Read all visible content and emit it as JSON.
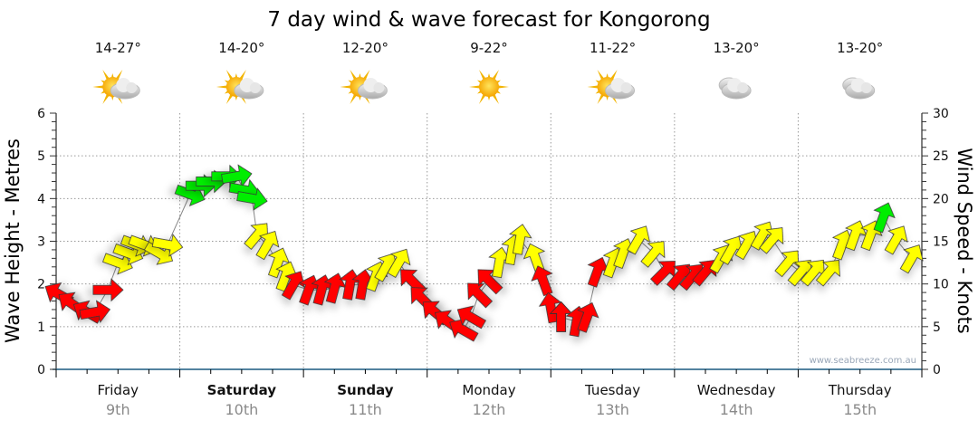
{
  "chart_data": {
    "type": "scatter",
    "title": "7 day wind & wave forecast for Kongorong",
    "ylabel_left": "Wave Height - Metres",
    "ylabel_right": "Wind Speed - Knots",
    "ylim_left": [
      0,
      6
    ],
    "ylim_right": [
      0,
      30
    ],
    "left_ticks": [
      "0",
      "1",
      "2",
      "3",
      "4",
      "5",
      "6"
    ],
    "right_ticks": [
      "0",
      "5",
      "10",
      "15",
      "20",
      "25",
      "30"
    ],
    "x_hours_range": [
      0,
      168
    ],
    "grid": true,
    "watermark": "www.seabreeze.com.au",
    "days": [
      {
        "name": "Friday",
        "date": "9th",
        "temp": "14-27°",
        "icon": "sun-cloud-icon",
        "bold": false
      },
      {
        "name": "Saturday",
        "date": "10th",
        "temp": "14-20°",
        "icon": "sun-cloud-icon",
        "bold": true
      },
      {
        "name": "Sunday",
        "date": "11th",
        "temp": "12-20°",
        "icon": "sun-cloud-icon",
        "bold": true
      },
      {
        "name": "Monday",
        "date": "12th",
        "temp": "9-22°",
        "icon": "sun-icon",
        "bold": false
      },
      {
        "name": "Tuesday",
        "date": "13th",
        "temp": "11-22°",
        "icon": "sun-cloud-icon",
        "bold": false
      },
      {
        "name": "Wednesday",
        "date": "14th",
        "temp": "13-20°",
        "icon": "cloud-icon",
        "bold": false
      },
      {
        "name": "Thursday",
        "date": "15th",
        "temp": "13-20°",
        "icon": "cloud-icon",
        "bold": false
      }
    ],
    "colors": {
      "red": "#ff0000",
      "yellow": "#ffff00",
      "green": "#00ee00",
      "axis": "#1a5a80"
    },
    "wind_series": {
      "fields": [
        "hour",
        "knots",
        "heading_deg",
        "color"
      ],
      "points": [
        [
          0.5,
          8.8,
          300,
          "red"
        ],
        [
          3,
          7.7,
          305,
          "red"
        ],
        [
          6,
          6.7,
          300,
          "red"
        ],
        [
          7.5,
          6.7,
          80,
          "red"
        ],
        [
          10,
          9.3,
          90,
          "red"
        ],
        [
          12,
          12.5,
          110,
          "yellow"
        ],
        [
          14,
          13.6,
          110,
          "yellow"
        ],
        [
          15.5,
          14.6,
          110,
          "yellow"
        ],
        [
          17,
          14.6,
          110,
          "yellow"
        ],
        [
          20,
          13.6,
          120,
          "yellow"
        ],
        [
          21.6,
          14.6,
          100,
          "yellow"
        ],
        [
          26,
          20.5,
          110,
          "green"
        ],
        [
          28,
          21.5,
          90,
          "green"
        ],
        [
          30,
          22,
          90,
          "green"
        ],
        [
          33,
          22.6,
          90,
          "green"
        ],
        [
          35,
          22.6,
          80,
          "green"
        ],
        [
          36.5,
          21,
          100,
          "green"
        ],
        [
          38,
          20,
          100,
          "green"
        ],
        [
          39,
          15.7,
          40,
          "yellow"
        ],
        [
          41,
          14.6,
          30,
          "yellow"
        ],
        [
          43,
          12.5,
          20,
          "yellow"
        ],
        [
          44.5,
          10.9,
          20,
          "yellow"
        ],
        [
          46,
          9.9,
          30,
          "red"
        ],
        [
          49,
          9.3,
          20,
          "red"
        ],
        [
          51.5,
          9.3,
          15,
          "red"
        ],
        [
          54,
          9.5,
          15,
          "red"
        ],
        [
          57,
          9.9,
          10,
          "red"
        ],
        [
          59.5,
          9.9,
          10,
          "red"
        ],
        [
          62,
          10.9,
          20,
          "yellow"
        ],
        [
          64,
          12,
          30,
          "yellow"
        ],
        [
          66.5,
          12.5,
          30,
          "yellow"
        ],
        [
          69,
          10.4,
          315,
          "red"
        ],
        [
          71,
          8.3,
          315,
          "red"
        ],
        [
          73.5,
          6.7,
          310,
          "red"
        ],
        [
          76,
          5.6,
          305,
          "red"
        ],
        [
          79,
          4.6,
          300,
          "red"
        ],
        [
          80.5,
          6.1,
          300,
          "red"
        ],
        [
          82,
          8.8,
          315,
          "red"
        ],
        [
          84,
          10.4,
          315,
          "red"
        ],
        [
          86,
          12.5,
          10,
          "yellow"
        ],
        [
          88.5,
          14,
          10,
          "yellow"
        ],
        [
          90,
          15.2,
          10,
          "yellow"
        ],
        [
          93,
          13,
          340,
          "yellow"
        ],
        [
          94.5,
          10.4,
          340,
          "red"
        ],
        [
          96,
          7.2,
          350,
          "red"
        ],
        [
          98,
          6.1,
          0,
          "red"
        ],
        [
          101,
          5.6,
          10,
          "red"
        ],
        [
          103,
          6.1,
          20,
          "red"
        ],
        [
          105,
          11.4,
          20,
          "red"
        ],
        [
          108,
          12.5,
          20,
          "yellow"
        ],
        [
          110,
          13.6,
          20,
          "yellow"
        ],
        [
          113,
          15.2,
          30,
          "yellow"
        ],
        [
          116,
          13.6,
          40,
          "yellow"
        ],
        [
          118,
          11.4,
          45,
          "red"
        ],
        [
          121,
          10.9,
          40,
          "red"
        ],
        [
          123.5,
          10.9,
          40,
          "red"
        ],
        [
          126,
          11.4,
          40,
          "red"
        ],
        [
          129,
          13,
          30,
          "yellow"
        ],
        [
          131,
          14,
          30,
          "yellow"
        ],
        [
          134,
          14.6,
          30,
          "yellow"
        ],
        [
          137,
          15.7,
          30,
          "yellow"
        ],
        [
          139,
          15.2,
          40,
          "yellow"
        ],
        [
          142,
          12.5,
          40,
          "yellow"
        ],
        [
          144.5,
          11.4,
          40,
          "yellow"
        ],
        [
          147,
          11.4,
          40,
          "yellow"
        ],
        [
          150,
          11.4,
          40,
          "yellow"
        ],
        [
          152.5,
          14.6,
          20,
          "yellow"
        ],
        [
          155,
          15.7,
          20,
          "yellow"
        ],
        [
          158,
          15.7,
          20,
          "yellow"
        ],
        [
          160.5,
          17.8,
          20,
          "green"
        ],
        [
          163,
          15.2,
          30,
          "yellow"
        ],
        [
          166,
          13,
          30,
          "yellow"
        ]
      ]
    }
  }
}
